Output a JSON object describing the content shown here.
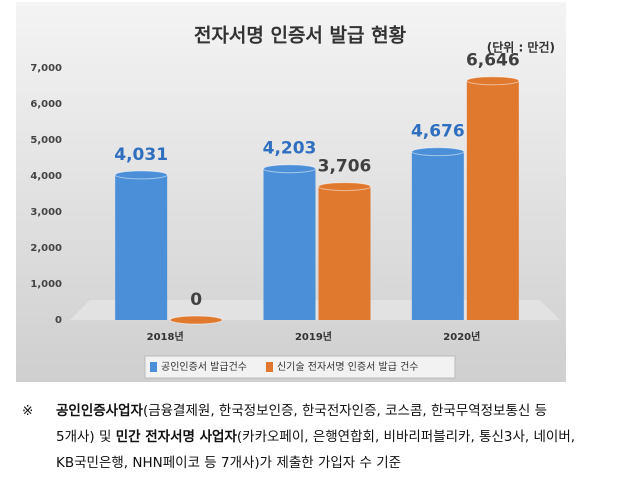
{
  "chart_data": {
    "type": "bar",
    "title": "전자서명 인증서 발급 현황",
    "unit_label": "(단위 : 만건)",
    "categories": [
      "2018년",
      "2019년",
      "2020년"
    ],
    "series": [
      {
        "name": "공인인증서 발급건수",
        "color": "#4a8fd8",
        "values": [
          4031,
          4203,
          4676
        ],
        "value_labels": [
          "4,031",
          "4,203",
          "4,676"
        ],
        "label_color": "#2f6fbf"
      },
      {
        "name": "신기술 전자서명 인증서 발급 건수",
        "color": "#e0782e",
        "values": [
          0,
          3706,
          6646
        ],
        "value_labels": [
          "0",
          "3,706",
          "6,646"
        ],
        "label_color": "#404040"
      }
    ],
    "ylim": [
      0,
      7000
    ],
    "yticks": [
      0,
      {
        "value": 1000,
        "label": "1,000"
      },
      {
        "value": 2000,
        "label": "2,000"
      },
      {
        "value": 3000,
        "label": "3,000"
      },
      {
        "value": 4000,
        "label": "4,000"
      },
      {
        "value": 5000,
        "label": "5,000"
      },
      {
        "value": 6000,
        "label": "6,000"
      },
      {
        "value": 7000,
        "label": "7,000"
      }
    ],
    "grid": false
  },
  "note": {
    "symbol": "※",
    "lines": [
      [
        {
          "text": "공인인증사업자",
          "bold": true
        },
        {
          "text": "(금융결제원, 한국정보인증, 한국전자인증, 코스콤, 한국무역정보통신 등",
          "bold": false
        }
      ],
      [
        {
          "text": "5개사) 및 ",
          "bold": false
        },
        {
          "text": "민간 전자서명 사업자",
          "bold": true
        },
        {
          "text": "(카카오페이, 은행연합회, 비바리퍼블리카, 통신3사, 네이버,",
          "bold": false
        }
      ],
      [
        {
          "text": "KB국민은행, NHN페이코 등 7개사)가 제출한 가입자 수 기준",
          "bold": false
        }
      ]
    ]
  }
}
